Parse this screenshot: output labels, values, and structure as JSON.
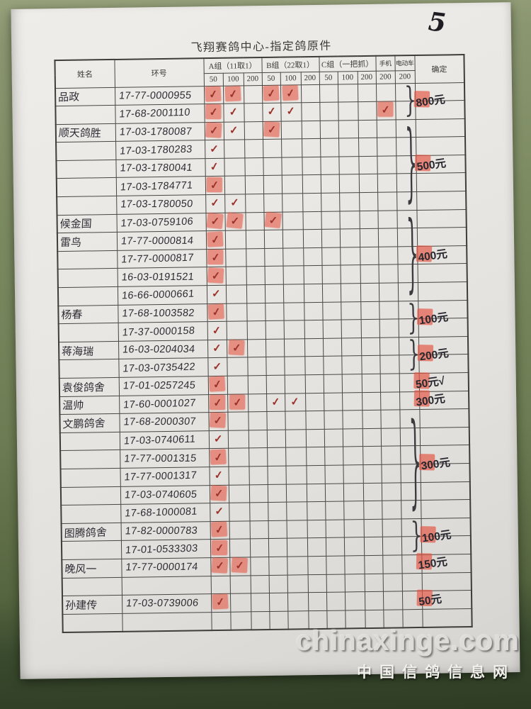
{
  "page_number": "5",
  "title": "飞翔赛鸽中心-指定鸽原件",
  "watermark": {
    "site": "chinaxinge.com",
    "site_cn": "中国信鸽信息网"
  },
  "colors": {
    "stamp_red": "#e3584a",
    "check_red": "#9c332b",
    "pen_ink": "#2c2c34",
    "paper": "#eae8e4",
    "table_surface_green": "#7c8a61",
    "table_surface_dark": "#2e3c24"
  },
  "table": {
    "header": {
      "name": "姓名",
      "ring": "环号",
      "group_a": "A组（11取1）",
      "group_b": "B组（22取1）",
      "group_c": "C组（一把抓）",
      "phone": "手机",
      "ebike": "电动车",
      "confirm": "确定",
      "tiers": [
        "50",
        "100",
        "200"
      ],
      "phone_tier": "200",
      "ebike_tier": "200"
    },
    "check_columns": [
      "a50",
      "a100",
      "a200",
      "b50",
      "b100",
      "b200",
      "c50",
      "c100",
      "c200",
      "phone",
      "ebike"
    ],
    "rows": [
      {
        "name": "品政",
        "ring": "17-77-0000955",
        "checks": {
          "a50": "stamp",
          "a100": "stamp",
          "b50": "stamp",
          "b100": "stamp"
        }
      },
      {
        "name": "",
        "ring": "17-68-2001110",
        "checks": {
          "a50": "stamp",
          "a100": "check",
          "b50": "check",
          "b100": "check",
          "phone": "stamp"
        }
      },
      {
        "name": "顺天鸽胜",
        "ring": "17-03-1780087",
        "checks": {
          "a50": "stamp",
          "a100": "check",
          "b50": "stamp"
        }
      },
      {
        "name": "",
        "ring": "17-03-1780283",
        "checks": {
          "a50": "check"
        }
      },
      {
        "name": "",
        "ring": "17-03-1780041",
        "checks": {
          "a50": "check"
        }
      },
      {
        "name": "",
        "ring": "17-03-1784771",
        "checks": {
          "a50": "stamp"
        }
      },
      {
        "name": "",
        "ring": "17-03-1780050",
        "checks": {
          "a50": "check",
          "a100": "check"
        }
      },
      {
        "name": "候金国",
        "ring": "17-03-0759106",
        "checks": {
          "a50": "stamp",
          "a100": "stamp",
          "b50": "stamp"
        }
      },
      {
        "name": "雷鸟",
        "ring": "17-77-0000814",
        "checks": {
          "a50": "stamp"
        }
      },
      {
        "name": "",
        "ring": "17-77-0000817",
        "checks": {
          "a50": "stamp"
        }
      },
      {
        "name": "",
        "ring": "16-03-0191521",
        "checks": {
          "a50": "stamp"
        }
      },
      {
        "name": "",
        "ring": "16-66-0000661",
        "checks": {
          "a50": "check"
        }
      },
      {
        "name": "杨春",
        "ring": "17-68-1003582",
        "checks": {
          "a50": "stamp"
        }
      },
      {
        "name": "",
        "ring": "17-37-0000158",
        "checks": {
          "a50": "check"
        }
      },
      {
        "name": "蒋海瑞",
        "ring": "16-03-0204034",
        "checks": {
          "a50": "check",
          "a100": "stamp"
        }
      },
      {
        "name": "",
        "ring": "17-03-0735422",
        "checks": {
          "a50": "check"
        }
      },
      {
        "name": "袁俊鸽舍",
        "ring": "17-01-0257245",
        "checks": {
          "a50": "stamp"
        }
      },
      {
        "name": "温帅",
        "ring": "17-60-0001027",
        "checks": {
          "a50": "stamp",
          "a100": "stamp",
          "b50": "check",
          "b100": "check"
        }
      },
      {
        "name": "文鹏鸽舍",
        "ring": "17-68-2000307",
        "checks": {
          "a50": "stamp"
        }
      },
      {
        "name": "",
        "ring": "17-03-0740611",
        "checks": {
          "a50": "check"
        }
      },
      {
        "name": "",
        "ring": "17-77-0001315",
        "checks": {
          "a50": "stamp"
        }
      },
      {
        "name": "",
        "ring": "17-77-0001317",
        "checks": {
          "a50": "check"
        }
      },
      {
        "name": "",
        "ring": "17-03-0740605",
        "checks": {
          "a50": "stamp"
        }
      },
      {
        "name": "",
        "ring": "17-68-1000081",
        "checks": {
          "a50": "check"
        }
      },
      {
        "name": "图腾鸽舍",
        "ring": "17-82-0000783",
        "checks": {
          "a50": "stamp"
        }
      },
      {
        "name": "",
        "ring": "17-01-0533303",
        "checks": {
          "a50": "stamp"
        }
      },
      {
        "name": "晚风一",
        "ring": "17-77-0000174",
        "checks": {
          "a50": "stamp",
          "a100": "stamp"
        }
      },
      {
        "name": "",
        "ring": "",
        "checks": {}
      },
      {
        "name": "孙建传",
        "ring": "17-03-0739006",
        "checks": {
          "a50": "stamp"
        }
      },
      {
        "name": "",
        "ring": "",
        "checks": {}
      }
    ],
    "confirm_notes": [
      {
        "row_start": 1,
        "row_end": 2,
        "text": "800元",
        "brace": true,
        "stamp": true
      },
      {
        "row_start": 3,
        "row_end": 7,
        "text": "500元",
        "brace": true,
        "stamp": true
      },
      {
        "row_start": 8,
        "row_end": 12,
        "text": "400元",
        "brace": true,
        "stamp": true
      },
      {
        "row_start": 13,
        "row_end": 14,
        "text": "100元",
        "brace": true,
        "stamp": true
      },
      {
        "row_start": 15,
        "row_end": 16,
        "text": "200元",
        "brace": true,
        "stamp": true
      },
      {
        "row_start": 17,
        "row_end": 17,
        "text": "50元√",
        "brace": false,
        "stamp": true
      },
      {
        "row_start": 18,
        "row_end": 18,
        "text": "300元",
        "brace": false,
        "stamp": true
      },
      {
        "row_start": 19,
        "row_end": 24,
        "text": "300元",
        "brace": true,
        "stamp": true
      },
      {
        "row_start": 25,
        "row_end": 26,
        "text": "100元",
        "brace": true,
        "stamp": true
      },
      {
        "row_start": 27,
        "row_end": 27,
        "text": "150元",
        "brace": false,
        "stamp": true
      },
      {
        "row_start": 29,
        "row_end": 29,
        "text": "50元",
        "brace": false,
        "stamp": true
      }
    ]
  }
}
